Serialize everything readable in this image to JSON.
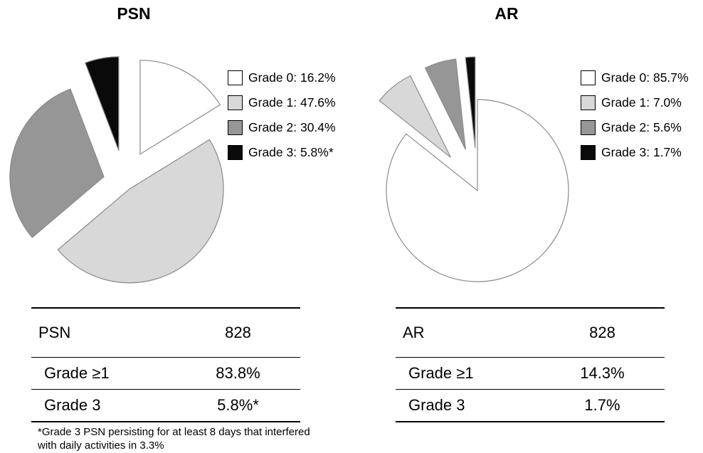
{
  "chart_data": [
    {
      "type": "pie",
      "title": "PSN",
      "exploded": true,
      "slices": [
        {
          "label": "Grade 0",
          "value": 16.2,
          "legend": "Grade 0: 16.2%",
          "color": "#ffffff"
        },
        {
          "label": "Grade 1",
          "value": 47.6,
          "legend": "Grade 1: 47.6%",
          "color": "#d8d8d8"
        },
        {
          "label": "Grade 2",
          "value": 30.4,
          "legend": "Grade 2: 30.4%",
          "color": "#969696"
        },
        {
          "label": "Grade 3",
          "value": 5.8,
          "legend": "Grade 3: 5.8%*",
          "color": "#0a0a0a"
        }
      ],
      "legend_position": "right",
      "table": {
        "header": [
          "PSN",
          "828"
        ],
        "rows": [
          [
            "Grade ≥1",
            "83.8%"
          ],
          [
            "Grade 3",
            "5.8%*"
          ]
        ]
      },
      "footnote": "*Grade 3 PSN persisting for at least 8 days that interfered with daily activities in 3.3%"
    },
    {
      "type": "pie",
      "title": "AR",
      "exploded": true,
      "slices": [
        {
          "label": "Grade 0",
          "value": 85.7,
          "legend": "Grade 0: 85.7%",
          "color": "#ffffff"
        },
        {
          "label": "Grade 1",
          "value": 7.0,
          "legend": "Grade 1: 7.0%",
          "color": "#d8d8d8"
        },
        {
          "label": "Grade 2",
          "value": 5.6,
          "legend": "Grade 2: 5.6%",
          "color": "#969696"
        },
        {
          "label": "Grade 3",
          "value": 1.7,
          "legend": "Grade 3: 1.7%",
          "color": "#0a0a0a"
        }
      ],
      "legend_position": "right",
      "table": {
        "header": [
          "AR",
          "828"
        ],
        "rows": [
          [
            "Grade ≥1",
            "14.3%"
          ],
          [
            "Grade 3",
            "1.7%"
          ]
        ]
      }
    }
  ]
}
